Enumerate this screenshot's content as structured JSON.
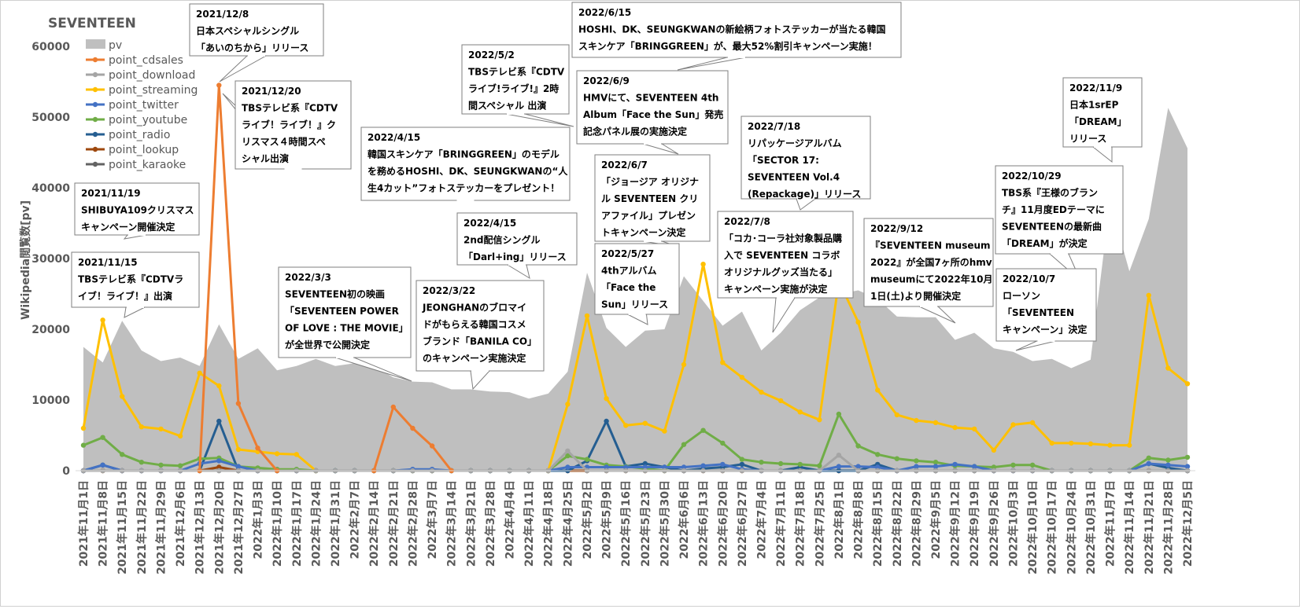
{
  "chart_data": {
    "type": "area+line",
    "title": "SEVENTEEN",
    "xlabel": "",
    "ylabel": "Wikipedia閲覧数[pv]",
    "ylim": [
      0,
      60000
    ],
    "yticks": [
      0,
      10000,
      20000,
      30000,
      40000,
      50000,
      60000
    ],
    "grid": false,
    "legend_position": "top-left",
    "categories": [
      "2021年11月1日",
      "2021年11月8日",
      "2021年11月15日",
      "2021年11月22日",
      "2021年11月29日",
      "2021年12月6日",
      "2021年12月13日",
      "2021年12月20日",
      "2021年12月27日",
      "2022年1月3日",
      "2022年1月10日",
      "2022年1月17日",
      "2022年1月24日",
      "2022年1月31日",
      "2022年2月7日",
      "2022年2月14日",
      "2022年2月21日",
      "2022年2月28日",
      "2022年3月7日",
      "2022年3月14日",
      "2022年3月21日",
      "2022年3月28日",
      "2022年4月4日",
      "2022年4月11日",
      "2022年4月18日",
      "2022年4月25日",
      "2022年5月2日",
      "2022年5月9日",
      "2022年5月16日",
      "2022年5月23日",
      "2022年5月30日",
      "2022年6月6日",
      "2022年6月13日",
      "2022年6月20日",
      "2022年6月27日",
      "2022年7月4日",
      "2022年7月11日",
      "2022年7月18日",
      "2022年7月25日",
      "2022年8月1日",
      "2022年8月8日",
      "2022年8月15日",
      "2022年8月22日",
      "2022年8月29日",
      "2022年9月5日",
      "2022年9月12日",
      "2022年9月19日",
      "2022年9月26日",
      "2022年10月3日",
      "2022年10月10日",
      "2022年10月17日",
      "2022年10月24日",
      "2022年10月31日",
      "2022年11月7日",
      "2022年11月14日",
      "2022年11月21日",
      "2022年11月28日",
      "2022年12月5日"
    ],
    "series": [
      {
        "name": "pv",
        "kind": "area",
        "color": "#bfbfbf",
        "values": [
          17500,
          15300,
          21200,
          17000,
          15500,
          16000,
          14800,
          20700,
          15800,
          17300,
          14200,
          14800,
          15800,
          14800,
          15200,
          14800,
          13200,
          12600,
          12500,
          11500,
          11500,
          11200,
          11100,
          10200,
          10900,
          14000,
          28000,
          20200,
          17500,
          19800,
          20000,
          27500,
          24000,
          20500,
          22500,
          17000,
          19500,
          22700,
          24500,
          25000,
          25500,
          24300,
          21800,
          21700,
          21700,
          18500,
          19500,
          17300,
          16800,
          15500,
          15800,
          14500,
          15700,
          38000,
          28200,
          35600,
          51300,
          45600
        ]
      },
      {
        "name": "point_cdsales",
        "kind": "line",
        "color": "#ed7d31",
        "values": [
          null,
          null,
          null,
          null,
          null,
          null,
          0,
          54500,
          9500,
          3200,
          0,
          null,
          null,
          null,
          null,
          0,
          9000,
          6000,
          3500,
          0,
          null,
          null,
          null,
          null,
          null,
          null,
          null,
          null,
          null,
          null,
          null,
          null,
          null,
          null,
          null,
          null,
          null,
          null,
          null,
          null,
          null,
          null,
          null,
          null,
          null,
          null,
          null,
          null,
          null,
          null,
          null,
          null,
          null,
          null,
          null,
          null,
          null,
          null
        ]
      },
      {
        "name": "point_download",
        "kind": "line",
        "color": "#a5a5a5",
        "values": [
          0,
          0,
          0,
          0,
          0,
          0,
          0,
          0,
          0,
          0,
          0,
          0,
          0,
          0,
          0,
          0,
          0,
          0,
          0,
          0,
          0,
          0,
          0,
          0,
          0,
          2800,
          0,
          0,
          0,
          0,
          0,
          0,
          0,
          0,
          0,
          0,
          0,
          0,
          0,
          2200,
          0,
          0,
          0,
          0,
          0,
          0,
          0,
          0,
          0,
          0,
          0,
          0,
          0,
          0,
          0,
          0,
          0,
          0
        ]
      },
      {
        "name": "point_streaming",
        "kind": "line",
        "color": "#ffc000",
        "values": [
          6000,
          21300,
          10500,
          6200,
          5900,
          4900,
          13800,
          12000,
          3000,
          2700,
          2400,
          2300,
          0,
          null,
          null,
          null,
          null,
          null,
          null,
          null,
          null,
          null,
          null,
          null,
          0,
          9400,
          21900,
          10200,
          6400,
          6700,
          5600,
          15000,
          29200,
          15300,
          13200,
          11100,
          9900,
          8300,
          7200,
          26800,
          21000,
          11400,
          7900,
          7100,
          6800,
          6100,
          5900,
          2900,
          6500,
          6800,
          3900,
          3900,
          3800,
          3600,
          3600,
          24800,
          14500,
          12300
        ]
      },
      {
        "name": "point_twitter",
        "kind": "line",
        "color": "#4472c4",
        "values": [
          0,
          800,
          0,
          0,
          0,
          0,
          1000,
          1400,
          600,
          0,
          0,
          0,
          0,
          0,
          0,
          0,
          0,
          200,
          200,
          0,
          0,
          0,
          0,
          0,
          0,
          500,
          500,
          500,
          500,
          500,
          500,
          500,
          700,
          900,
          200,
          0,
          0,
          0,
          0,
          600,
          600,
          500,
          0,
          600,
          600,
          900,
          600,
          0,
          0,
          0,
          0,
          0,
          0,
          0,
          0,
          1000,
          800,
          600
        ]
      },
      {
        "name": "point_youtube",
        "kind": "line",
        "color": "#70ad47",
        "values": [
          3600,
          4700,
          2300,
          1200,
          800,
          700,
          1700,
          1800,
          600,
          400,
          200,
          200,
          0,
          0,
          0,
          0,
          0,
          0,
          0,
          0,
          0,
          0,
          0,
          0,
          0,
          2100,
          1600,
          800,
          600,
          300,
          0,
          3700,
          5700,
          3900,
          1600,
          1200,
          1000,
          900,
          700,
          8000,
          3500,
          2300,
          1700,
          1400,
          1200,
          700,
          600,
          500,
          800,
          800,
          0,
          0,
          0,
          0,
          0,
          1800,
          1500,
          1900
        ]
      },
      {
        "name": "point_radio",
        "kind": "line",
        "color": "#255e91",
        "values": [
          0,
          800,
          0,
          0,
          0,
          0,
          0,
          7000,
          0,
          0,
          0,
          0,
          0,
          0,
          0,
          0,
          0,
          0,
          0,
          0,
          0,
          0,
          0,
          0,
          0,
          0,
          1400,
          7000,
          600,
          1000,
          500,
          0,
          300,
          500,
          900,
          0,
          0,
          500,
          0,
          0,
          0,
          900,
          0,
          0,
          0,
          0,
          0,
          0,
          0,
          0,
          0,
          0,
          0,
          0,
          0,
          1000,
          400,
          0
        ]
      },
      {
        "name": "point_lookup",
        "kind": "line",
        "color": "#9e480e",
        "values": [
          0,
          0,
          0,
          0,
          0,
          0,
          0,
          500,
          0,
          0,
          0,
          0,
          0,
          0,
          0,
          0,
          0,
          0,
          0,
          0,
          0,
          0,
          0,
          0,
          0,
          0,
          0,
          0,
          0,
          0,
          0,
          0,
          0,
          0,
          0,
          0,
          0,
          0,
          0,
          0,
          0,
          0,
          0,
          0,
          0,
          0,
          0,
          0,
          0,
          0,
          0,
          0,
          0,
          0,
          0,
          0,
          0,
          0
        ]
      },
      {
        "name": "point_karaoke",
        "kind": "line",
        "color": "#636363",
        "values": [
          0,
          0,
          0,
          0,
          0,
          0,
          0,
          0,
          0,
          0,
          0,
          0,
          0,
          0,
          0,
          0,
          0,
          0,
          0,
          0,
          0,
          0,
          0,
          0,
          0,
          0,
          0,
          0,
          0,
          0,
          0,
          0,
          0,
          0,
          0,
          0,
          0,
          0,
          0,
          0,
          0,
          0,
          0,
          0,
          0,
          0,
          0,
          0,
          0,
          0,
          0,
          0,
          0,
          0,
          0,
          0,
          0,
          0
        ]
      }
    ],
    "annotations": [
      {
        "lines": [
          "2021/11/19",
          "SHIBUYA109クリスマス",
          "キャンペーン開催決定"
        ]
      },
      {
        "lines": [
          "2021/11/15",
          "TBSテレビ系『CDTVラ",
          "イブ！ライブ！』出演"
        ]
      },
      {
        "lines": [
          "2021/12/8",
          "日本スペシャルシングル",
          "「あいのちから」リリース"
        ]
      },
      {
        "lines": [
          "2021/12/20",
          "TBSテレビ系『CDTV",
          "ライブ！ライブ！』ク",
          "リスマス４時間スペ",
          "シャル出演"
        ]
      },
      {
        "lines": [
          "2022/3/3",
          "SEVENTEEN初の映画",
          "「SEVENTEEN POWER",
          "OF LOVE : THE MOVIE」",
          "が全世界で公開決定"
        ]
      },
      {
        "lines": [
          "2022/3/22",
          "JEONGHANのブロマイ",
          "ドがもらえる韓国コスメ",
          "ブランド「BANILA CO」",
          "のキャンペーン実施決定"
        ]
      },
      {
        "lines": [
          "2022/4/15",
          "韓国スキンケア「BRINGGREEN」のモデル",
          "を務めるHOSHI、DK、SEUNGKWANの“人",
          "生4カット”フォトステッカーをプレゼント！"
        ]
      },
      {
        "lines": [
          "2022/5/2",
          "TBSテレビ系『CDTV",
          "ライブ!ライブ!』2時",
          "間スペシャル 出演"
        ]
      },
      {
        "lines": [
          "2022/4/15",
          "2nd配信シングル",
          "「Darl+ing」リリース"
        ]
      },
      {
        "lines": [
          "2022/6/15",
          "HOSHI、DK、SEUNGKWANの新絵柄フォトステッカーが当たる韓国",
          "スキンケア「BRINGGREEN」が、最大52%割引キャンペーン実施！"
        ]
      },
      {
        "lines": [
          "2022/6/9",
          "HMVにて、SEVENTEEN 4th",
          "Album「Face the Sun」発売",
          "記念パネル展の実施決定"
        ]
      },
      {
        "lines": [
          "2022/6/7",
          "「ジョージア オリジナ",
          "ル SEVENTEEN クリ",
          "アファイル」プレゼン",
          "トキャンペーン決定"
        ]
      },
      {
        "lines": [
          "2022/5/27",
          "4thアルバム",
          "「Face the",
          "Sun」リリース"
        ]
      },
      {
        "lines": [
          "2022/7/18",
          "リパッケージアルバム",
          "「SECTOR 17:",
          "SEVENTEEN Vol.4",
          "(Repackage)」リリース"
        ]
      },
      {
        "lines": [
          "2022/7/8",
          "「コカ･コーラ社対象製品購",
          "入で SEVENTEEN コラボ",
          "オリジナルグッズ当たる」",
          "キャンペーン実施が決定"
        ]
      },
      {
        "lines": [
          "2022/9/12",
          "『SEVENTEEN museum",
          "2022』が全国7ヶ所のhmv",
          "museumにて2022年10月",
          "1日(土)より開催決定"
        ]
      },
      {
        "lines": [
          "2022/11/9",
          "日本1srEP",
          "「DREAM」",
          "リリース"
        ]
      },
      {
        "lines": [
          "2022/10/29",
          "TBS系『王様のブラン",
          "チ』11月度EDテーマに",
          "SEVENTEENの最新曲",
          "「DREAM」が決定"
        ]
      },
      {
        "lines": [
          "2022/10/7",
          "ローソン",
          "「SEVENTEEN",
          "キャンペーン」決定"
        ]
      }
    ]
  }
}
